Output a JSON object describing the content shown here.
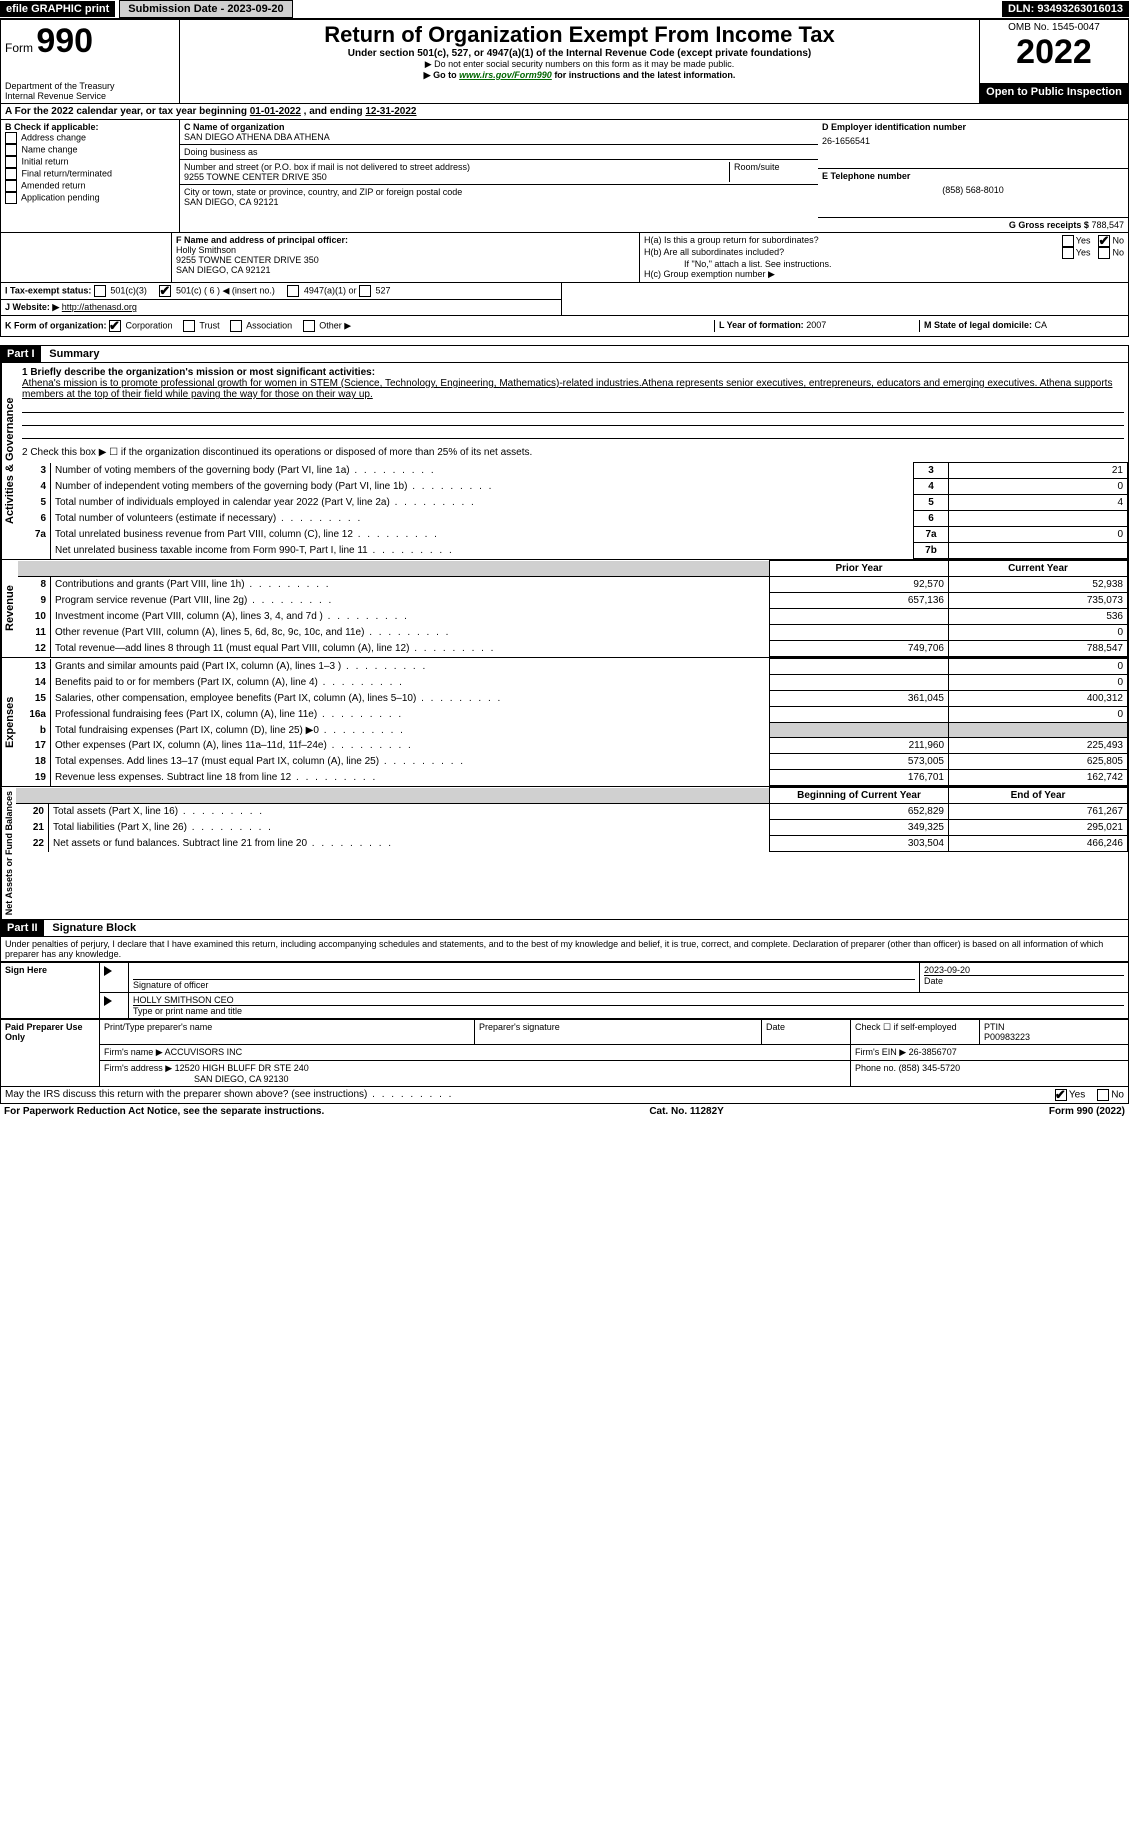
{
  "topbar": {
    "efile": "efile GRAPHIC print",
    "submission": "Submission Date - 2023-09-20",
    "dln": "DLN: 93493263016013"
  },
  "header": {
    "form_word": "Form",
    "form_num": "990",
    "dept": "Department of the Treasury",
    "irs": "Internal Revenue Service",
    "title": "Return of Organization Exempt From Income Tax",
    "subtitle": "Under section 501(c), 527, or 4947(a)(1) of the Internal Revenue Code (except private foundations)",
    "note1": "▶ Do not enter social security numbers on this form as it may be made public.",
    "note2_pre": "▶ Go to ",
    "note2_link": "www.irs.gov/Form990",
    "note2_post": " for instructions and the latest information.",
    "omb": "OMB No. 1545-0047",
    "year": "2022",
    "open": "Open to Public Inspection"
  },
  "sectionA": {
    "text_pre": "A For the 2022 calendar year, or tax year beginning ",
    "begin": "01-01-2022",
    "mid": "   , and ending ",
    "end": "12-31-2022"
  },
  "colB": {
    "header": "B Check if applicable:",
    "items": [
      "Address change",
      "Name change",
      "Initial return",
      "Final return/terminated",
      "Amended return",
      "Application pending"
    ]
  },
  "org": {
    "c_label": "C Name of organization",
    "name": "SAN DIEGO ATHENA DBA ATHENA",
    "dba_label": "Doing business as",
    "addr_label": "Number and street (or P.O. box if mail is not delivered to street address)",
    "room_label": "Room/suite",
    "addr": "9255 TOWNE CENTER DRIVE 350",
    "city_label": "City or town, state or province, country, and ZIP or foreign postal code",
    "city": "SAN DIEGO, CA  92121",
    "f_label": "F Name and address of principal officer:",
    "officer": "Holly Smithson",
    "officer_addr": "9255 TOWNE CENTER DRIVE 350",
    "officer_city": "SAN DIEGO, CA  92121"
  },
  "right": {
    "d_label": "D Employer identification number",
    "ein": "26-1656541",
    "e_label": "E Telephone number",
    "phone": "(858) 568-8010",
    "g_label": "G Gross receipts $",
    "gross": "788,547",
    "ha": "H(a)  Is this a group return for subordinates?",
    "hb": "H(b)  Are all subordinates included?",
    "hb_note": "If \"No,\" attach a list. See instructions.",
    "hc": "H(c)  Group exemption number ▶",
    "yes": "Yes",
    "no": "No"
  },
  "rowI": {
    "label": "I  Tax-exempt status:",
    "opt1": "501(c)(3)",
    "opt2": "501(c) ( 6 ) ◀ (insert no.)",
    "opt3": "4947(a)(1) or",
    "opt4": "527"
  },
  "rowJ": {
    "label": "J  Website: ▶",
    "value": "http://athenasd.org"
  },
  "rowK": {
    "label": "K Form of organization:",
    "opts": [
      "Corporation",
      "Trust",
      "Association",
      "Other ▶"
    ],
    "l_label": "L Year of formation:",
    "l_val": "2007",
    "m_label": "M State of legal domicile:",
    "m_val": "CA"
  },
  "part1": {
    "header": "Part I",
    "title": "Summary",
    "side_gov": "Activities & Governance",
    "side_rev": "Revenue",
    "side_exp": "Expenses",
    "side_net": "Net Assets or Fund Balances",
    "line1_label": "1  Briefly describe the organization's mission or most significant activities:",
    "mission": "Athena's mission is to promote professional growth for women in STEM (Science, Technology, Engineering, Mathematics)-related industries.Athena represents senior executives, entrepreneurs, educators and emerging executives. Athena supports members at the top of their field while paving the way for those on their way up.",
    "line2": "2   Check this box ▶ ☐ if the organization discontinued its operations or disposed of more than 25% of its net assets.",
    "rows_gov": [
      {
        "n": "3",
        "t": "Number of voting members of the governing body (Part VI, line 1a)",
        "box": "3",
        "v": "21"
      },
      {
        "n": "4",
        "t": "Number of independent voting members of the governing body (Part VI, line 1b)",
        "box": "4",
        "v": "0"
      },
      {
        "n": "5",
        "t": "Total number of individuals employed in calendar year 2022 (Part V, line 2a)",
        "box": "5",
        "v": "4"
      },
      {
        "n": "6",
        "t": "Total number of volunteers (estimate if necessary)",
        "box": "6",
        "v": ""
      },
      {
        "n": "7a",
        "t": "Total unrelated business revenue from Part VIII, column (C), line 12",
        "box": "7a",
        "v": "0"
      },
      {
        "n": "",
        "t": "Net unrelated business taxable income from Form 990-T, Part I, line 11",
        "box": "7b",
        "v": ""
      }
    ],
    "col_prior": "Prior Year",
    "col_current": "Current Year",
    "rows_rev": [
      {
        "n": "8",
        "t": "Contributions and grants (Part VIII, line 1h)",
        "p": "92,570",
        "c": "52,938"
      },
      {
        "n": "9",
        "t": "Program service revenue (Part VIII, line 2g)",
        "p": "657,136",
        "c": "735,073"
      },
      {
        "n": "10",
        "t": "Investment income (Part VIII, column (A), lines 3, 4, and 7d )",
        "p": "",
        "c": "536"
      },
      {
        "n": "11",
        "t": "Other revenue (Part VIII, column (A), lines 5, 6d, 8c, 9c, 10c, and 11e)",
        "p": "",
        "c": "0"
      },
      {
        "n": "12",
        "t": "Total revenue—add lines 8 through 11 (must equal Part VIII, column (A), line 12)",
        "p": "749,706",
        "c": "788,547"
      }
    ],
    "rows_exp": [
      {
        "n": "13",
        "t": "Grants and similar amounts paid (Part IX, column (A), lines 1–3 )",
        "p": "",
        "c": "0"
      },
      {
        "n": "14",
        "t": "Benefits paid to or for members (Part IX, column (A), line 4)",
        "p": "",
        "c": "0"
      },
      {
        "n": "15",
        "t": "Salaries, other compensation, employee benefits (Part IX, column (A), lines 5–10)",
        "p": "361,045",
        "c": "400-312"
      },
      {
        "n": "16a",
        "t": "Professional fundraising fees (Part IX, column (A), line 11e)",
        "p": "",
        "c": "0"
      },
      {
        "n": "b",
        "t": "Total fundraising expenses (Part IX, column (D), line 25) ▶0",
        "p": "GRAY",
        "c": "GRAY"
      },
      {
        "n": "17",
        "t": "Other expenses (Part IX, column (A), lines 11a–11d, 11f–24e)",
        "p": "211,960",
        "c": "225,493"
      },
      {
        "n": "18",
        "t": "Total expenses. Add lines 13–17 (must equal Part IX, column (A), line 25)",
        "p": "573,005",
        "c": "625,805"
      },
      {
        "n": "19",
        "t": "Revenue less expenses. Subtract line 18 from line 12",
        "p": "176,701",
        "c": "162,742"
      }
    ],
    "rows_exp_fix": {
      "15c": "400,312"
    },
    "col_begin": "Beginning of Current Year",
    "col_end": "End of Year",
    "rows_net": [
      {
        "n": "20",
        "t": "Total assets (Part X, line 16)",
        "p": "652,829",
        "c": "761,267"
      },
      {
        "n": "21",
        "t": "Total liabilities (Part X, line 26)",
        "p": "349,325",
        "c": "295,021"
      },
      {
        "n": "22",
        "t": "Net assets or fund balances. Subtract line 21 from line 20",
        "p": "303,504",
        "c": "466,246"
      }
    ]
  },
  "part2": {
    "header": "Part II",
    "title": "Signature Block",
    "declaration": "Under penalties of perjury, I declare that I have examined this return, including accompanying schedules and statements, and to the best of my knowledge and belief, it is true, correct, and complete. Declaration of preparer (other than officer) is based on all information of which preparer has any knowledge.",
    "sign_here": "Sign Here",
    "sig_officer": "Signature of officer",
    "date_label": "Date",
    "date_val": "2023-09-20",
    "name_title": "HOLLY SMITHSON  CEO",
    "name_title_label": "Type or print name and title",
    "paid": "Paid Preparer Use Only",
    "prep_name_label": "Print/Type preparer's name",
    "prep_sig_label": "Preparer's signature",
    "prep_date_label": "Date",
    "self_emp": "Check ☐ if self-employed",
    "ptin_label": "PTIN",
    "ptin": "P00983223",
    "firm_name_label": "Firm's name    ▶",
    "firm_name": "ACCUVISORS INC",
    "firm_ein_label": "Firm's EIN ▶",
    "firm_ein": "26-3856707",
    "firm_addr_label": "Firm's address ▶",
    "firm_addr": "12520 HIGH BLUFF DR STE 240",
    "firm_city": "SAN DIEGO, CA  92130",
    "phone_label": "Phone no.",
    "phone": "(858) 345-5720",
    "discuss": "May the IRS discuss this return with the preparer shown above? (see instructions)",
    "yes": "Yes",
    "no": "No"
  },
  "footer": {
    "left": "For Paperwork Reduction Act Notice, see the separate instructions.",
    "mid": "Cat. No. 11282Y",
    "right_pre": "Form ",
    "right_form": "990",
    "right_post": " (2022)"
  }
}
